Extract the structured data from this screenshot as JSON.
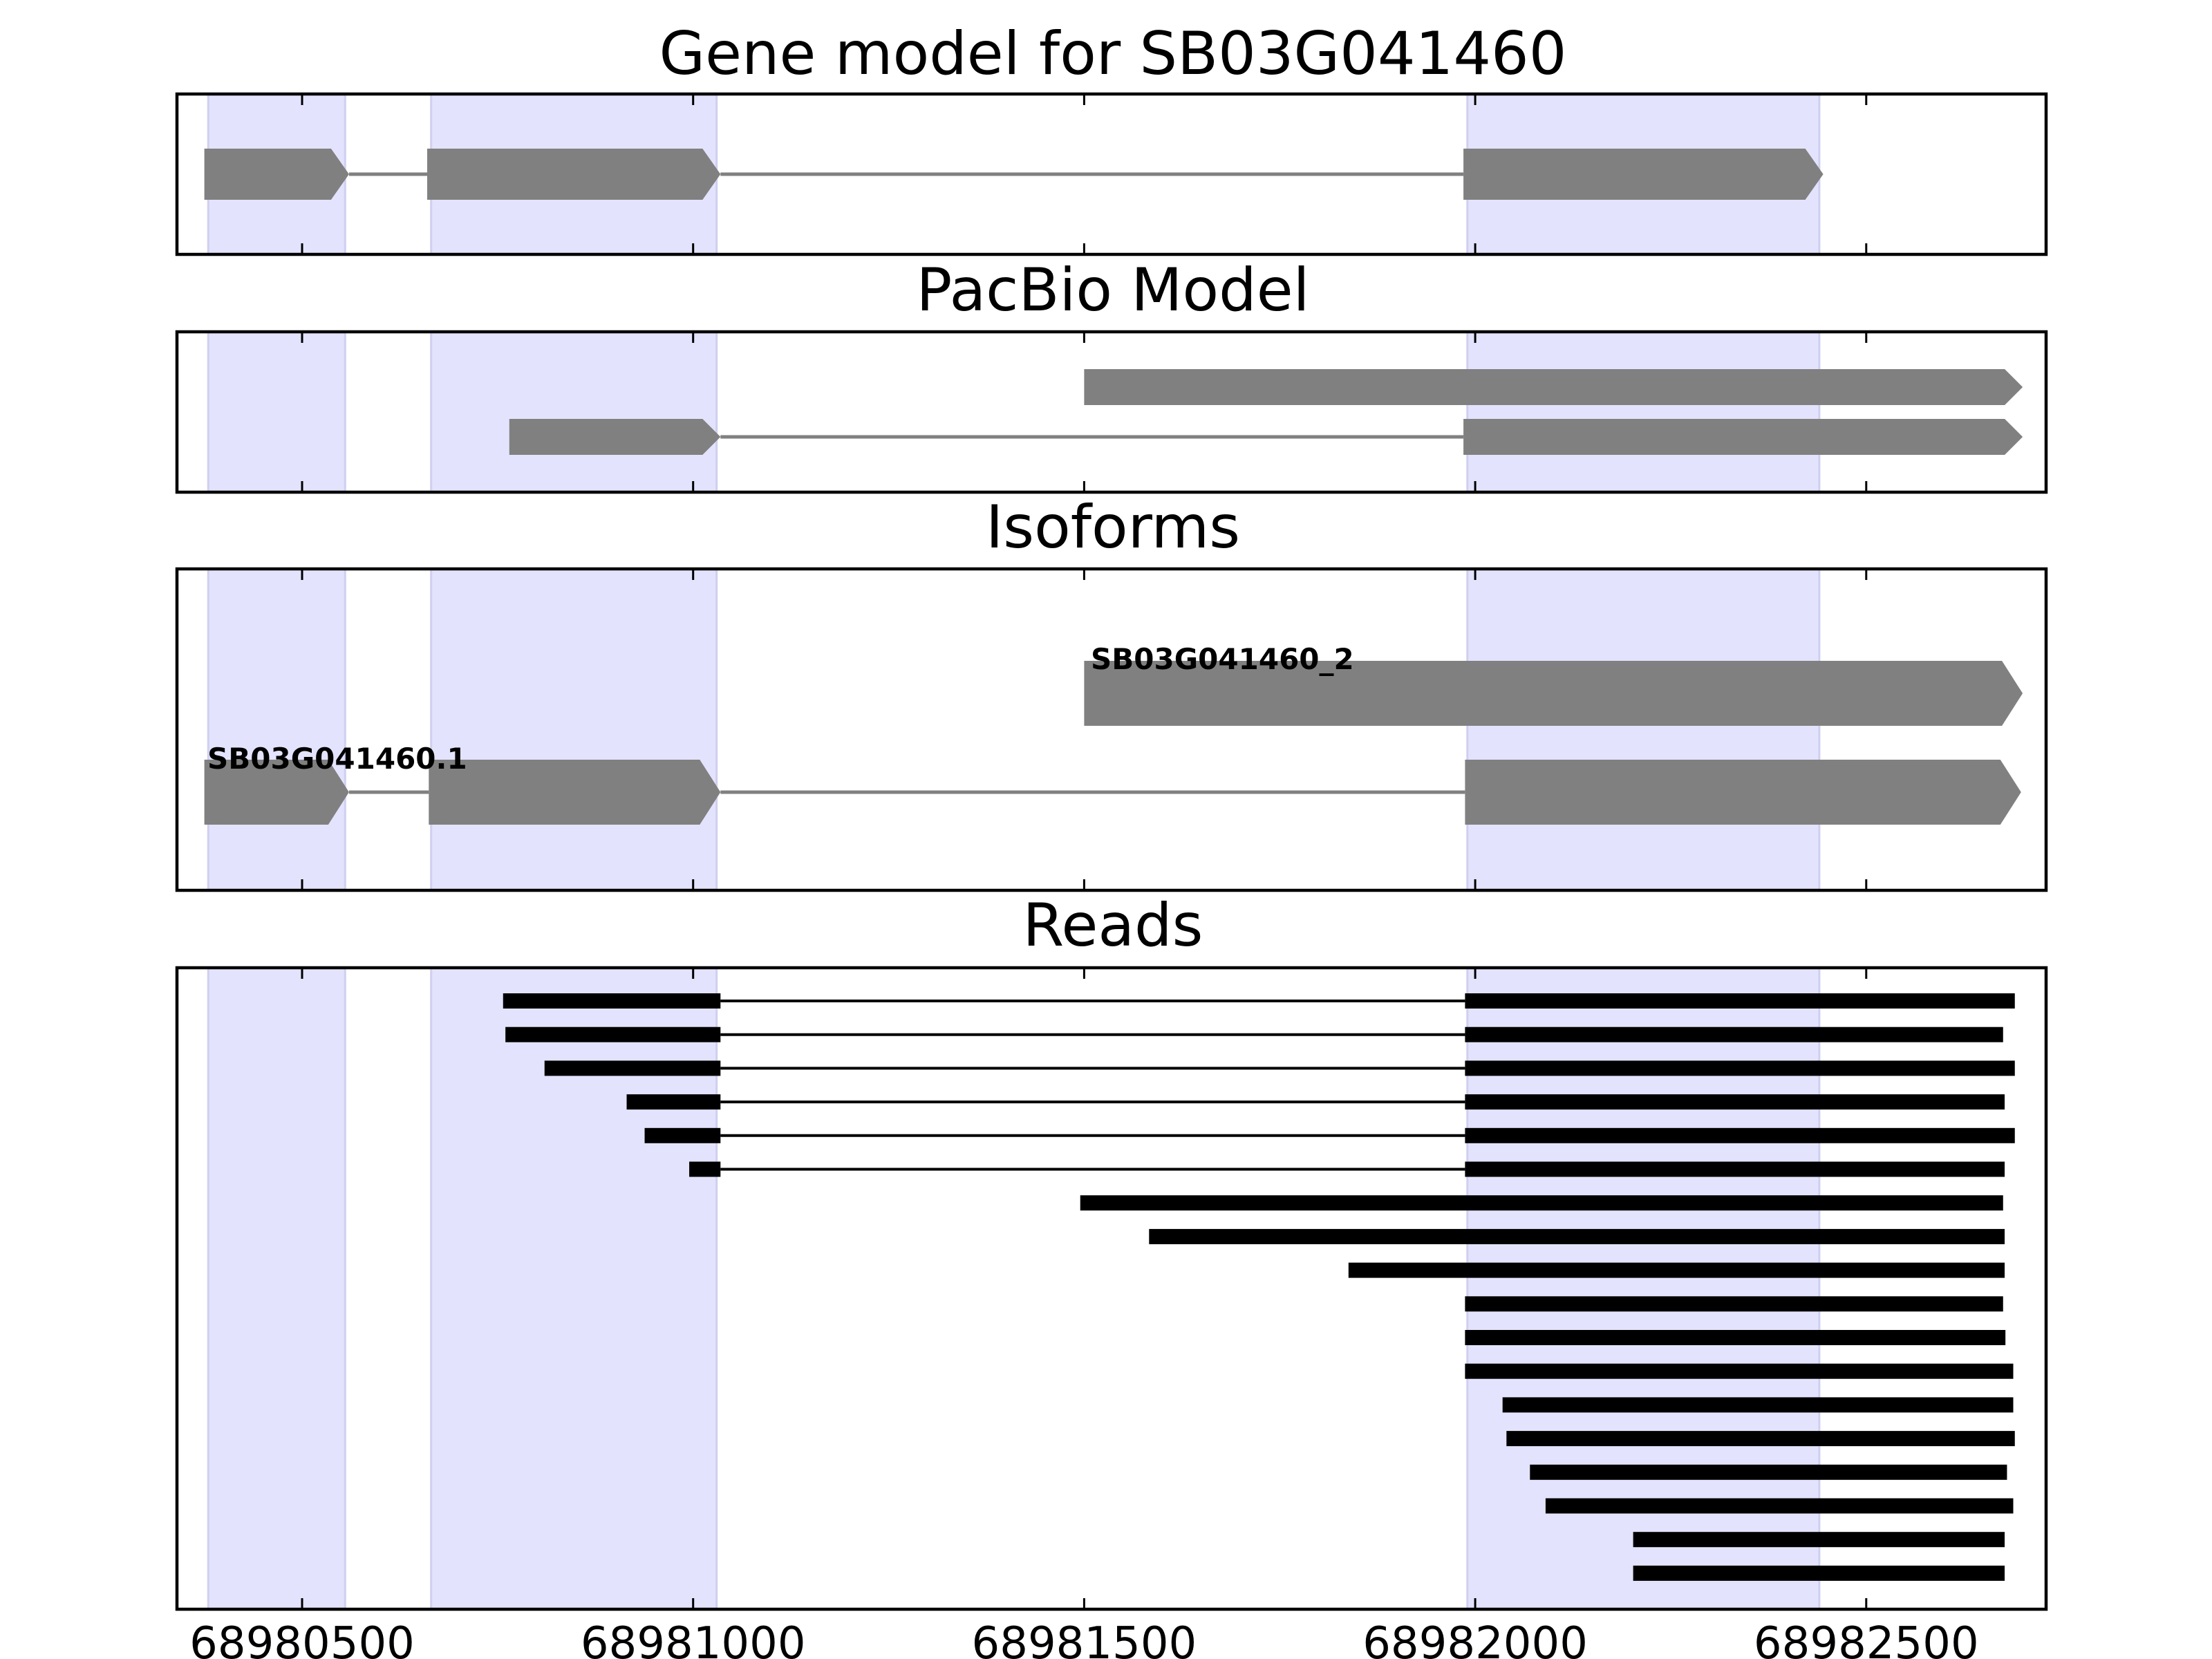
{
  "chart_data": {
    "type": "gene-track",
    "x_axis": {
      "xlim": [
        68980340,
        68982730
      ],
      "ticks": [
        68980500,
        68981000,
        68981500,
        68982000,
        68982500
      ],
      "tick_labels": [
        "68980500",
        "68981000",
        "68981500",
        "68982000",
        "68982500"
      ]
    },
    "highlight_regions": [
      [
        68980380,
        68980555
      ],
      [
        68980665,
        68981030
      ],
      [
        68981990,
        68982440
      ]
    ],
    "colors": {
      "highlight": "#e3e3fd",
      "highlight_edge": "#cfcff0",
      "model": "#808080",
      "read": "#000000",
      "frame": "#000000"
    },
    "panels": [
      {
        "key": "gene_model",
        "title": "Gene model for SB03G041460",
        "tracks": [
          {
            "exons": [
              [
                68980375,
                68980560
              ],
              [
                68980660,
                68981035
              ],
              [
                68981985,
                68982445
              ]
            ],
            "label": ""
          }
        ]
      },
      {
        "key": "pacbio",
        "title": "PacBio Model",
        "tracks": [
          {
            "exons": [
              [
                68981500,
                68982700
              ]
            ],
            "label": ""
          },
          {
            "exons": [
              [
                68980765,
                68981035
              ],
              [
                68981985,
                68982700
              ]
            ],
            "label": ""
          }
        ]
      },
      {
        "key": "isoforms",
        "title": "Isoforms",
        "tracks": [
          {
            "exons": [
              [
                68981500,
                68982700
              ]
            ],
            "label": "SB03G041460_2"
          },
          {
            "exons": [
              [
                68980375,
                68980560
              ],
              [
                68980662,
                68981035
              ],
              [
                68981987,
                68982698
              ]
            ],
            "label": "SB03G041460.1"
          }
        ]
      },
      {
        "key": "reads",
        "title": "Reads",
        "reads": [
          [
            [
              68980757,
              68981035
            ],
            [
              68981987,
              68982690
            ]
          ],
          [
            [
              68980760,
              68981035
            ],
            [
              68981987,
              68982675
            ]
          ],
          [
            [
              68980810,
              68981035
            ],
            [
              68981987,
              68982690
            ]
          ],
          [
            [
              68980915,
              68981035
            ],
            [
              68981987,
              68982677
            ]
          ],
          [
            [
              68980938,
              68981035
            ],
            [
              68981987,
              68982690
            ]
          ],
          [
            [
              68980995,
              68981035
            ],
            [
              68981987,
              68982677
            ]
          ],
          [
            [
              68981495,
              68982675
            ]
          ],
          [
            [
              68981583,
              68982677
            ]
          ],
          [
            [
              68981838,
              68982677
            ]
          ],
          [
            [
              68981987,
              68982675
            ]
          ],
          [
            [
              68981987,
              68982678
            ]
          ],
          [
            [
              68981987,
              68982688
            ]
          ],
          [
            [
              68982035,
              68982688
            ]
          ],
          [
            [
              68982040,
              68982690
            ]
          ],
          [
            [
              68982070,
              68982680
            ]
          ],
          [
            [
              68982090,
              68982688
            ]
          ],
          [
            [
              68982202,
              68982677
            ]
          ],
          [
            [
              68982202,
              68982677
            ]
          ]
        ]
      }
    ]
  }
}
